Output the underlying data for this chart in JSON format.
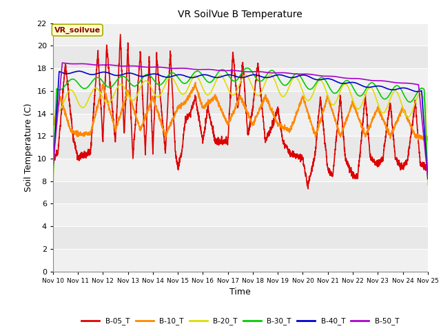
{
  "title": "VR SoilVue B Temperature",
  "xlabel": "Time",
  "ylabel": "Soil Temperature (C)",
  "ylim": [
    0,
    22
  ],
  "yticks": [
    0,
    2,
    4,
    6,
    8,
    10,
    12,
    14,
    16,
    18,
    20,
    22
  ],
  "x_tick_labels": [
    "Nov 10",
    "Nov 11",
    "Nov 12",
    "Nov 13",
    "Nov 14",
    "Nov 15",
    "Nov 16",
    "Nov 17",
    "Nov 18",
    "Nov 19",
    "Nov 20",
    "Nov 21",
    "Nov 22",
    "Nov 23",
    "Nov 24",
    "Nov 25"
  ],
  "annotation_text": "VR_soilvue",
  "annotation_box_color": "#ffffcc",
  "annotation_border_color": "#aaaa00",
  "annotation_text_color": "#880000",
  "series_colors": {
    "B-05_T": "#dd0000",
    "B-10_T": "#ff8800",
    "B-20_T": "#dddd00",
    "B-30_T": "#00cc00",
    "B-40_T": "#0000cc",
    "B-50_T": "#aa00cc"
  },
  "linewidth": 1.2,
  "bg_color": "#e8e8e8",
  "grid_color": "#ffffff",
  "fig_bg_color": "#ffffff"
}
